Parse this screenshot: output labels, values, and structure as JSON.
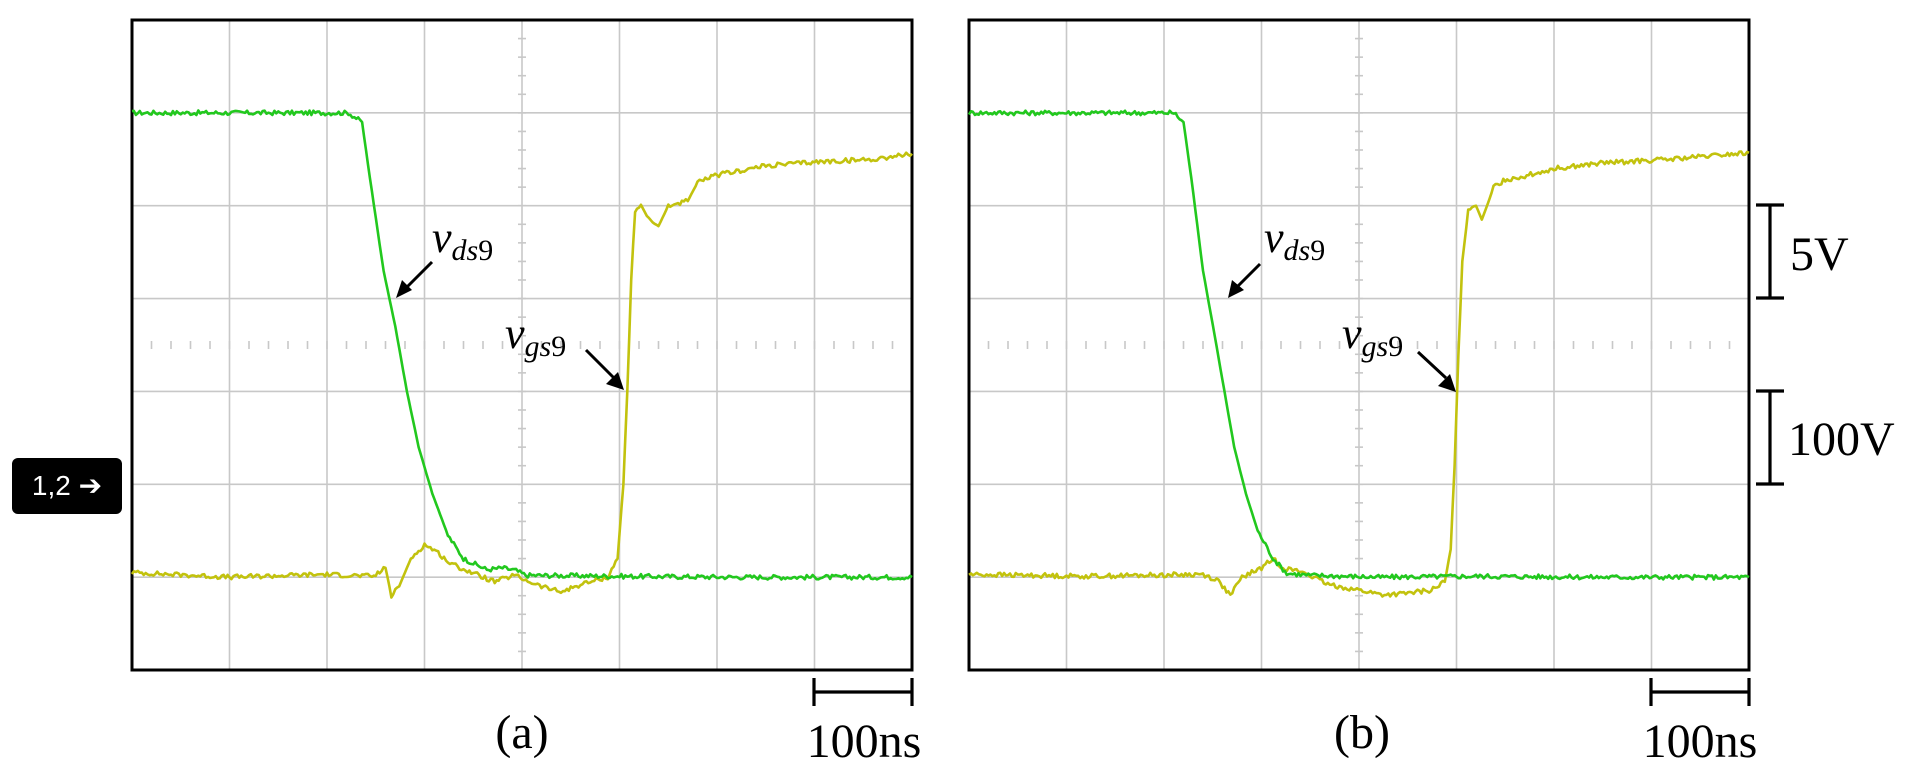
{
  "chart_data": [
    {
      "type": "line",
      "panel_label": "(a)",
      "time_scale_label": "100ns",
      "x_unit": "ns",
      "x_per_division": 100,
      "xlim": [
        0,
        800
      ],
      "ylim_divisions": [
        0,
        7
      ],
      "grid": true,
      "series": [
        {
          "name": "vds9",
          "name_parts": [
            "v",
            "ds",
            "9"
          ],
          "color": "#22c81e",
          "points_div": [
            [
              0,
              6.0
            ],
            [
              222,
              6.0
            ],
            [
              236,
              5.9
            ],
            [
              244,
              5.3
            ],
            [
              258,
              4.3
            ],
            [
              270,
              3.7
            ],
            [
              282,
              3.0
            ],
            [
              294,
              2.4
            ],
            [
              308,
              1.9
            ],
            [
              324,
              1.45
            ],
            [
              340,
              1.2
            ],
            [
              364,
              1.08
            ],
            [
              380,
              1.1
            ],
            [
              394,
              1.07
            ],
            [
              404,
              1.02
            ],
            [
              500,
              1.01
            ],
            [
              620,
              1.0
            ],
            [
              800,
              1.0
            ]
          ]
        },
        {
          "name": "vgs9",
          "name_parts": [
            "v",
            "gs",
            "9"
          ],
          "color": "#c2c20e",
          "points_div": [
            [
              0,
              1.05
            ],
            [
              100,
              1.0
            ],
            [
              196,
              1.03
            ],
            [
              248,
              1.01
            ],
            [
              260,
              1.1
            ],
            [
              266,
              0.8
            ],
            [
              274,
              0.9
            ],
            [
              286,
              1.2
            ],
            [
              300,
              1.35
            ],
            [
              312,
              1.28
            ],
            [
              326,
              1.15
            ],
            [
              346,
              1.06
            ],
            [
              372,
              0.95
            ],
            [
              392,
              1.02
            ],
            [
              420,
              0.9
            ],
            [
              440,
              0.84
            ],
            [
              460,
              0.92
            ],
            [
              488,
              1.0
            ],
            [
              498,
              1.2
            ],
            [
              504,
              2.0
            ],
            [
              508,
              3.0
            ],
            [
              512,
              4.2
            ],
            [
              516,
              4.95
            ],
            [
              522,
              5.01
            ],
            [
              530,
              4.85
            ],
            [
              540,
              4.78
            ],
            [
              550,
              5.0
            ],
            [
              570,
              5.05
            ],
            [
              580,
              5.25
            ],
            [
              600,
              5.33
            ],
            [
              650,
              5.43
            ],
            [
              700,
              5.47
            ],
            [
              760,
              5.5
            ],
            [
              800,
              5.56
            ]
          ],
          "markers": []
        }
      ]
    },
    {
      "type": "line",
      "panel_label": "(b)",
      "time_scale_label": "100ns",
      "x_unit": "ns",
      "x_per_division": 100,
      "xlim": [
        0,
        800
      ],
      "ylim_divisions": [
        0,
        7
      ],
      "grid": true,
      "vertical_scale_labels": [
        {
          "label": "5V",
          "span_div": [
            4,
            5
          ]
        },
        {
          "label": "100V",
          "span_div": [
            2,
            3
          ]
        }
      ],
      "series": [
        {
          "name": "vds9",
          "name_parts": [
            "v",
            "ds",
            "9"
          ],
          "color": "#22c81e",
          "points_div": [
            [
              0,
              6.0
            ],
            [
              210,
              6.0
            ],
            [
              220,
              5.9
            ],
            [
              228,
              5.3
            ],
            [
              240,
              4.3
            ],
            [
              252,
              3.6
            ],
            [
              262,
              3.0
            ],
            [
              272,
              2.4
            ],
            [
              284,
              1.9
            ],
            [
              296,
              1.5
            ],
            [
              312,
              1.2
            ],
            [
              326,
              1.04
            ],
            [
              350,
              1.02
            ],
            [
              420,
              1.0
            ],
            [
              520,
              1.01
            ],
            [
              640,
              1.0
            ],
            [
              800,
              1.0
            ]
          ]
        },
        {
          "name": "vgs9",
          "name_parts": [
            "v",
            "gs",
            "9"
          ],
          "color": "#c2c20e",
          "points_div": [
            [
              0,
              1.03
            ],
            [
              120,
              1.01
            ],
            [
              240,
              1.03
            ],
            [
              256,
              0.96
            ],
            [
              268,
              0.8
            ],
            [
              280,
              1.0
            ],
            [
              300,
              1.1
            ],
            [
              312,
              1.2
            ],
            [
              322,
              1.1
            ],
            [
              344,
              1.05
            ],
            [
              368,
              0.92
            ],
            [
              400,
              0.86
            ],
            [
              424,
              0.81
            ],
            [
              446,
              0.82
            ],
            [
              474,
              0.86
            ],
            [
              488,
              0.95
            ],
            [
              494,
              1.3
            ],
            [
              498,
              2.2
            ],
            [
              502,
              3.4
            ],
            [
              506,
              4.4
            ],
            [
              512,
              4.95
            ],
            [
              520,
              5.0
            ],
            [
              526,
              4.85
            ],
            [
              532,
              5.02
            ],
            [
              538,
              5.2
            ],
            [
              550,
              5.28
            ],
            [
              570,
              5.32
            ],
            [
              600,
              5.4
            ],
            [
              650,
              5.46
            ],
            [
              720,
              5.5
            ],
            [
              800,
              5.57
            ]
          ]
        }
      ]
    }
  ],
  "channel_marker": {
    "label": "1,2 ➔"
  }
}
